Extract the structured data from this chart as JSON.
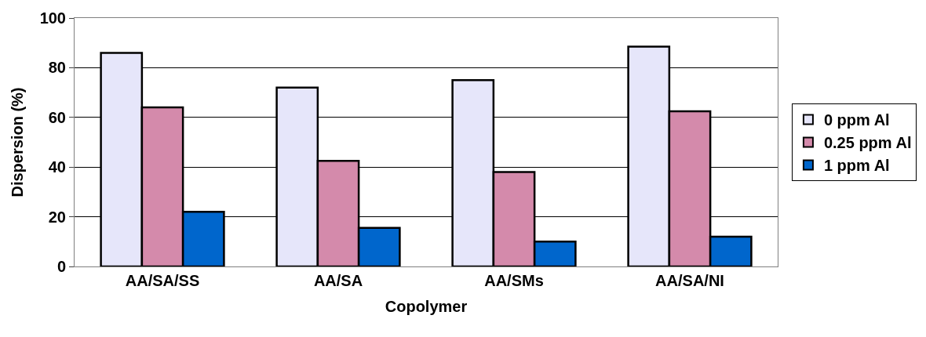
{
  "chart_data": {
    "type": "bar",
    "xlabel": "Copolymer",
    "ylabel": "Dispersion (%)",
    "categories": [
      "AA/SA/SS",
      "AA/SA",
      "AA/SMs",
      "AA/SA/NI"
    ],
    "series": [
      {
        "name": "0 ppm Al",
        "color": "#e6e6fa",
        "values": [
          86,
          72,
          75,
          88.5
        ]
      },
      {
        "name": "0.25 ppm Al",
        "color": "#d48aab",
        "values": [
          64,
          42.5,
          38,
          62.5
        ]
      },
      {
        "name": "1 ppm Al",
        "color": "#0066cc",
        "values": [
          22,
          15.5,
          10,
          12
        ]
      }
    ],
    "ylim": [
      0,
      100
    ],
    "yticks": [
      0,
      20,
      40,
      60,
      80,
      100
    ],
    "grid": "y",
    "legend": "right"
  }
}
